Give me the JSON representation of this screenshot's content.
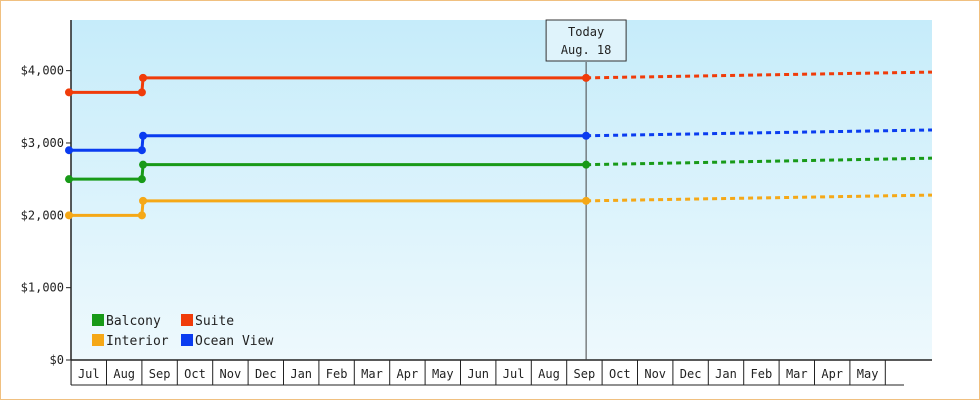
{
  "chart_data": {
    "type": "line",
    "step": true,
    "x_unit": "month",
    "x_range": [
      "2018-06",
      "2019-05"
    ],
    "ylim": [
      0,
      4700
    ],
    "yticks": [
      {
        "value": 0,
        "label": "$0"
      },
      {
        "value": 1000,
        "label": "$1,000"
      },
      {
        "value": 2000,
        "label": "$2,000"
      },
      {
        "value": 3000,
        "label": "$3,000"
      },
      {
        "value": 4000,
        "label": "$4,000"
      }
    ],
    "month_labels": [
      {
        "month": "2018-07",
        "label": "Jul"
      },
      {
        "month": "2018-08",
        "label": "Aug"
      },
      {
        "month": "2018-09",
        "label": "Sep"
      },
      {
        "month": "2018-10",
        "label": "Oct"
      },
      {
        "month": "2018-11",
        "label": "Nov"
      },
      {
        "month": "2018-12",
        "label": "Dec"
      },
      {
        "month": "2019-01",
        "label": "Jan"
      },
      {
        "month": "2019-02",
        "label": "Feb"
      },
      {
        "month": "2019-03",
        "label": "Mar"
      },
      {
        "month": "2019-04",
        "label": "Apr"
      },
      {
        "month": "2019-05",
        "label": "May"
      },
      {
        "month": "2019-06",
        "label": "Jun"
      },
      {
        "month": "2019-07",
        "label": "Jul"
      },
      {
        "month": "2019-08",
        "label": "Aug"
      },
      {
        "month": "2019-09",
        "label": "Sep"
      },
      {
        "month": "2019-10",
        "label": "Oct"
      },
      {
        "month": "2019-11",
        "label": "Nov"
      },
      {
        "month": "2019-12",
        "label": "Dec"
      },
      {
        "month": "2020-01",
        "label": "Jan"
      },
      {
        "month": "2020-02",
        "label": "Feb"
      },
      {
        "month": "2020-03",
        "label": "Mar"
      },
      {
        "month": "2020-04",
        "label": "Apr"
      },
      {
        "month": "2020-05",
        "label": "May"
      }
    ],
    "today": {
      "line1": "Today",
      "line2": "Aug. 18",
      "date": "2019-08-18"
    },
    "legend_position": "bottom-left",
    "grid": false,
    "series": [
      {
        "name": "Balcony",
        "color": "#189a18",
        "points": [
          [
            "2018-06-30",
            2500
          ],
          [
            "2018-08-01",
            2500
          ],
          [
            "2018-08-02",
            2700
          ],
          [
            "2019-08-18",
            2700
          ]
        ],
        "forecast": [
          [
            "2019-08-18",
            2700
          ],
          [
            "2020-06-01",
            2790
          ]
        ]
      },
      {
        "name": "Suite",
        "color": "#f03c0a",
        "points": [
          [
            "2018-06-30",
            3700
          ],
          [
            "2018-08-01",
            3700
          ],
          [
            "2018-08-02",
            3900
          ],
          [
            "2019-08-18",
            3900
          ]
        ],
        "forecast": [
          [
            "2019-08-18",
            3900
          ],
          [
            "2020-06-01",
            3980
          ]
        ]
      },
      {
        "name": "Interior",
        "color": "#f5a817",
        "points": [
          [
            "2018-06-30",
            2000
          ],
          [
            "2018-08-01",
            2000
          ],
          [
            "2018-08-02",
            2200
          ],
          [
            "2019-08-18",
            2200
          ]
        ],
        "forecast": [
          [
            "2019-08-18",
            2200
          ],
          [
            "2020-06-01",
            2280
          ]
        ]
      },
      {
        "name": "Ocean View",
        "color": "#0a3cf0",
        "points": [
          [
            "2018-06-30",
            2900
          ],
          [
            "2018-08-01",
            2900
          ],
          [
            "2018-08-02",
            3100
          ],
          [
            "2019-08-18",
            3100
          ]
        ],
        "forecast": [
          [
            "2019-08-18",
            3100
          ],
          [
            "2020-06-01",
            3180
          ]
        ]
      }
    ]
  }
}
